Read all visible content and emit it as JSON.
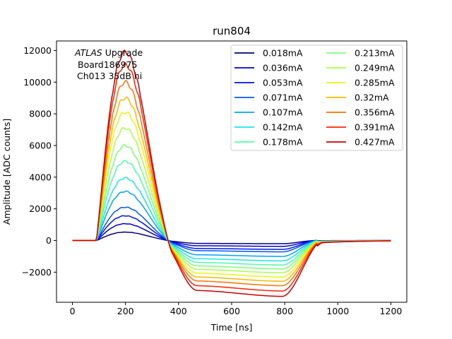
{
  "chart_data": {
    "type": "line",
    "title": "run804",
    "xlabel": "Time [ns]",
    "ylabel": "Amplitude [ADC counts]",
    "xlim": [
      -60,
      1260
    ],
    "ylim": [
      -3900,
      12600
    ],
    "xticks": [
      0,
      200,
      400,
      600,
      800,
      1000,
      1200
    ],
    "yticks": [
      -2000,
      0,
      2000,
      4000,
      6000,
      8000,
      10000,
      12000
    ],
    "annotation": {
      "italic": "ATLAS",
      "line1_rest": " Upgrade",
      "line2": "Board186975",
      "line3": "Ch013 35dB hi"
    },
    "legend_location": "upper right",
    "legend_columns": 2,
    "series": [
      {
        "name": "0.018mA",
        "color": "#00007f",
        "peak": 530,
        "undershoot": 180
      },
      {
        "name": "0.036mA",
        "color": "#0000d0",
        "peak": 1060,
        "undershoot": 330
      },
      {
        "name": "0.053mA",
        "color": "#0010ff",
        "peak": 1560,
        "undershoot": 500
      },
      {
        "name": "0.071mA",
        "color": "#0058ff",
        "peak": 2100,
        "undershoot": 640
      },
      {
        "name": "0.107mA",
        "color": "#00a4ff",
        "peak": 3100,
        "undershoot": 900
      },
      {
        "name": "0.142mA",
        "color": "#1ae7e2",
        "peak": 3950,
        "undershoot": 1150
      },
      {
        "name": "0.178mA",
        "color": "#4cffaa",
        "peak": 5000,
        "undershoot": 1380
      },
      {
        "name": "0.213mA",
        "color": "#7dff7a",
        "peak": 6000,
        "undershoot": 1600
      },
      {
        "name": "0.249mA",
        "color": "#aaff4d",
        "peak": 7100,
        "undershoot": 1820
      },
      {
        "name": "0.285mA",
        "color": "#e7f80f",
        "peak": 8100,
        "undershoot": 2060
      },
      {
        "name": "0.32mA",
        "color": "#ffb800",
        "peak": 9000,
        "undershoot": 2300
      },
      {
        "name": "0.356mA",
        "color": "#ff7300",
        "peak": 10000,
        "undershoot": 2550
      },
      {
        "name": "0.391mA",
        "color": "#ff2500",
        "peak": 11100,
        "undershoot": 2850
      },
      {
        "name": "0.427mA",
        "color": "#cc0000",
        "peak": 11900,
        "undershoot": 3150
      }
    ]
  }
}
